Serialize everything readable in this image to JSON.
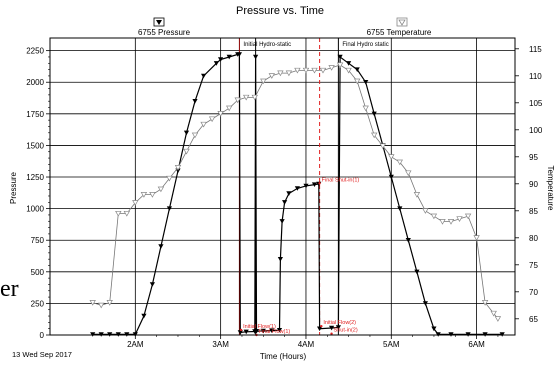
{
  "stray_text": "er",
  "chart_data": {
    "type": "line",
    "title": "Pressure vs. Time",
    "xlabel": "Time (Hours)",
    "ylabel": "Pressure",
    "y2label": "Temperature",
    "date_label": "13 Wed Sep 2017",
    "x_ticks": [
      {
        "label": "2AM",
        "hour": 2
      },
      {
        "label": "3AM",
        "hour": 3
      },
      {
        "label": "4AM",
        "hour": 4
      },
      {
        "label": "5AM",
        "hour": 5
      },
      {
        "label": "6AM",
        "hour": 6
      }
    ],
    "xlim": [
      1.0,
      6.45
    ],
    "ylim": [
      0,
      2350
    ],
    "y_ticks": [
      0,
      250,
      500,
      750,
      1000,
      1250,
      1500,
      1750,
      2000,
      2250
    ],
    "y2lim": [
      62,
      117
    ],
    "y2_ticks": [
      65,
      70,
      75,
      80,
      85,
      90,
      95,
      100,
      105,
      110,
      115
    ],
    "grid": true,
    "legend": [
      {
        "name": "6755 Pressure",
        "marker": "filled-triangle-down"
      },
      {
        "name": "6755 Temperature",
        "marker": "hollow-triangle-down"
      }
    ],
    "series": [
      {
        "name": "6755 Pressure",
        "axis": "left",
        "color": "#000000",
        "points": [
          [
            1.5,
            5
          ],
          [
            1.6,
            5
          ],
          [
            1.7,
            5
          ],
          [
            1.8,
            5
          ],
          [
            1.9,
            5
          ],
          [
            2.0,
            5
          ],
          [
            2.1,
            150
          ],
          [
            2.2,
            400
          ],
          [
            2.3,
            700
          ],
          [
            2.4,
            1000
          ],
          [
            2.5,
            1300
          ],
          [
            2.6,
            1600
          ],
          [
            2.7,
            1850
          ],
          [
            2.8,
            2050
          ],
          [
            2.95,
            2150
          ],
          [
            3.0,
            2180
          ],
          [
            3.1,
            2200
          ],
          [
            3.2,
            2220
          ],
          [
            3.22,
            2220
          ],
          [
            3.23,
            20
          ],
          [
            3.3,
            25
          ],
          [
            3.4,
            28
          ],
          [
            3.41,
            2200
          ],
          [
            3.42,
            30
          ],
          [
            3.5,
            32
          ],
          [
            3.6,
            35
          ],
          [
            3.69,
            38
          ],
          [
            3.7,
            600
          ],
          [
            3.72,
            900
          ],
          [
            3.75,
            1050
          ],
          [
            3.8,
            1120
          ],
          [
            3.9,
            1160
          ],
          [
            4.0,
            1180
          ],
          [
            4.1,
            1190
          ],
          [
            4.15,
            1195
          ],
          [
            4.16,
            50
          ],
          [
            4.3,
            55
          ],
          [
            4.38,
            60
          ],
          [
            4.4,
            2200
          ],
          [
            4.5,
            2150
          ],
          [
            4.6,
            2100
          ],
          [
            4.7,
            2000
          ],
          [
            4.8,
            1750
          ],
          [
            4.9,
            1500
          ],
          [
            5.0,
            1250
          ],
          [
            5.1,
            1000
          ],
          [
            5.2,
            750
          ],
          [
            5.3,
            500
          ],
          [
            5.4,
            250
          ],
          [
            5.5,
            50
          ],
          [
            5.55,
            5
          ],
          [
            5.7,
            5
          ],
          [
            5.9,
            5
          ],
          [
            6.1,
            5
          ],
          [
            6.3,
            5
          ]
        ]
      },
      {
        "name": "6755 Temperature",
        "axis": "right",
        "color": "#777777",
        "points": [
          [
            1.5,
            68
          ],
          [
            1.6,
            67.5
          ],
          [
            1.7,
            68
          ],
          [
            1.8,
            84.5
          ],
          [
            1.9,
            84.5
          ],
          [
            2.0,
            86.5
          ],
          [
            2.1,
            88
          ],
          [
            2.2,
            88
          ],
          [
            2.3,
            89
          ],
          [
            2.4,
            91
          ],
          [
            2.5,
            93
          ],
          [
            2.6,
            96
          ],
          [
            2.7,
            99
          ],
          [
            2.8,
            101
          ],
          [
            2.9,
            102
          ],
          [
            3.0,
            103
          ],
          [
            3.1,
            104
          ],
          [
            3.2,
            105.5
          ],
          [
            3.3,
            106
          ],
          [
            3.4,
            106
          ],
          [
            3.5,
            109
          ],
          [
            3.6,
            110
          ],
          [
            3.7,
            110.5
          ],
          [
            3.8,
            110.5
          ],
          [
            3.9,
            111
          ],
          [
            4.0,
            111
          ],
          [
            4.1,
            111
          ],
          [
            4.2,
            111
          ],
          [
            4.3,
            111.5
          ],
          [
            4.4,
            112
          ],
          [
            4.5,
            111
          ],
          [
            4.6,
            109
          ],
          [
            4.7,
            104
          ],
          [
            4.8,
            99
          ],
          [
            4.9,
            97
          ],
          [
            5.0,
            95
          ],
          [
            5.1,
            94
          ],
          [
            5.2,
            92
          ],
          [
            5.3,
            88
          ],
          [
            5.4,
            85
          ],
          [
            5.5,
            84
          ],
          [
            5.6,
            83
          ],
          [
            5.7,
            83
          ],
          [
            5.8,
            83.5
          ],
          [
            5.9,
            84
          ],
          [
            6.0,
            80
          ],
          [
            6.1,
            68
          ],
          [
            6.2,
            66
          ],
          [
            6.25,
            65
          ]
        ]
      }
    ],
    "markers": [
      {
        "label": "Initial Hydro-static",
        "hour": 3.22,
        "style": "dark-red"
      },
      {
        "label": "",
        "hour": 3.41,
        "style": "black"
      },
      {
        "label": "Final Hydro static",
        "hour": 4.38,
        "style": "black"
      },
      {
        "label": "",
        "hour": 4.16,
        "style": "red-dashed"
      }
    ],
    "annotations": [
      {
        "label": "Final Shut-in(1)",
        "hour": 4.16,
        "pressure": 1200
      },
      {
        "label": "Initial Flow(1)",
        "hour": 3.24,
        "pressure": 40
      },
      {
        "label": "Final Flow(1)",
        "hour": 3.42,
        "pressure": 0
      },
      {
        "label": "Initial Flow(2)",
        "hour": 4.18,
        "pressure": 70
      },
      {
        "label": "Shut-in(2)",
        "hour": 4.3,
        "pressure": 10
      }
    ]
  }
}
